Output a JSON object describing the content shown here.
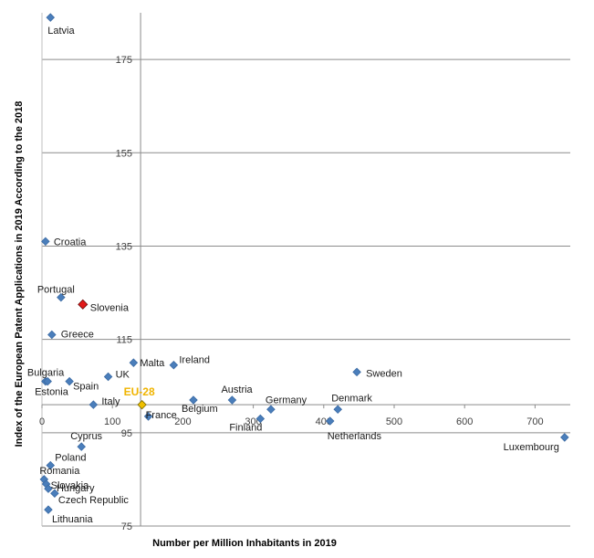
{
  "chart_data": {
    "type": "scatter",
    "title": "",
    "xlabel": "Number per Million Inhabitants in 2019",
    "ylabel": "Index of the European Patent Applications in 2019 According to the 2018",
    "xlim": [
      0,
      750
    ],
    "ylim": [
      75,
      185
    ],
    "x_ticks": [
      "0",
      "100",
      "200",
      "300",
      "400",
      "500",
      "600",
      "700"
    ],
    "y_ticks": [
      "75",
      "95",
      "115",
      "135",
      "155",
      "175"
    ],
    "x_axis_crosses_y": 101,
    "y_axis_crosses_x": 140,
    "grid": "horizontal",
    "colors": {
      "default": "#4a7ebb",
      "slovenia": "#e21a1a",
      "eu28": "#f0c000",
      "eu28_label": "#f0b400"
    },
    "points": [
      {
        "label": "Latvia",
        "x": 12,
        "y": 184
      },
      {
        "label": "Croatia",
        "x": 5,
        "y": 136
      },
      {
        "label": "Portugal",
        "x": 27,
        "y": 124
      },
      {
        "label": "Slovenia",
        "x": 58,
        "y": 122.5,
        "highlight": "slovenia"
      },
      {
        "label": "Greece",
        "x": 14,
        "y": 116
      },
      {
        "label": "Malta",
        "x": 130,
        "y": 110
      },
      {
        "label": "Ireland",
        "x": 187,
        "y": 109.5
      },
      {
        "label": "Sweden",
        "x": 447,
        "y": 108
      },
      {
        "label": "Bulgaria",
        "x": 5,
        "y": 106
      },
      {
        "label": "Spain",
        "x": 39,
        "y": 106
      },
      {
        "label": "UK",
        "x": 94,
        "y": 107
      },
      {
        "label": "Estonia",
        "x": 8,
        "y": 106
      },
      {
        "label": "Italy",
        "x": 73,
        "y": 101
      },
      {
        "label": "EU-28",
        "x": 142,
        "y": 101,
        "highlight": "eu28"
      },
      {
        "label": "France",
        "x": 151,
        "y": 98.5
      },
      {
        "label": "Belgium",
        "x": 215,
        "y": 102
      },
      {
        "label": "Austria",
        "x": 270,
        "y": 102
      },
      {
        "label": "Germany",
        "x": 325,
        "y": 100
      },
      {
        "label": "Finland",
        "x": 310,
        "y": 98
      },
      {
        "label": "Denmark",
        "x": 420,
        "y": 100
      },
      {
        "label": "Netherlands",
        "x": 409,
        "y": 97.5
      },
      {
        "label": "Luxembourg",
        "x": 742,
        "y": 94
      },
      {
        "label": "Cyprus",
        "x": 56,
        "y": 92
      },
      {
        "label": "Poland",
        "x": 12,
        "y": 88
      },
      {
        "label": "Romania",
        "x": 3,
        "y": 85
      },
      {
        "label": "Slovakia",
        "x": 6,
        "y": 84
      },
      {
        "label": "Hungary",
        "x": 9,
        "y": 83
      },
      {
        "label": "Czech Republic",
        "x": 18,
        "y": 82
      },
      {
        "label": "Lithuania",
        "x": 9,
        "y": 78.5
      }
    ]
  }
}
